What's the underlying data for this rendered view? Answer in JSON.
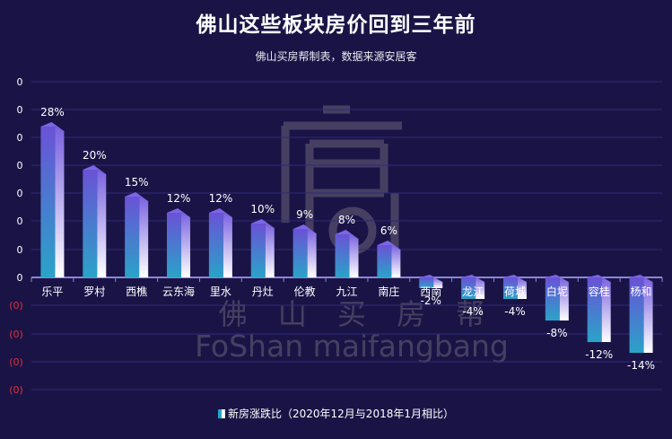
{
  "title": "佛山这些板块房价回到三年前",
  "subtitle": "佛山买房帮制表，数据来源安居客",
  "legend_label": "新房涨跌比（2020年12月与2018年1月相比）",
  "watermark": {
    "line1": "佛 山 买 房 帮",
    "line2": "FoShan maifangbang"
  },
  "colors": {
    "background": "#1a1446",
    "bar_top": "#6a52d6",
    "bar_bottom": "#2aa3c8",
    "bar_side": "#ffffff",
    "negative_tick": "#e0303a",
    "grid": "#2e2a7a"
  },
  "chart_data": {
    "type": "bar",
    "categories": [
      "乐平",
      "罗村",
      "西樵",
      "云东海",
      "里水",
      "丹灶",
      "伦教",
      "九江",
      "南庄",
      "西南",
      "龙江",
      "荷城",
      "白坭",
      "容桂",
      "杨和"
    ],
    "series": [
      {
        "name": "新房涨跌比（2020年12月与2018年1月相比）",
        "values": [
          28,
          20,
          15,
          12,
          12,
          10,
          9,
          8,
          6,
          -2,
          -4,
          -4,
          -8,
          -12,
          -14
        ]
      }
    ],
    "data_labels": [
      "28%",
      "20%",
      "15%",
      "12%",
      "12%",
      "10%",
      "9%",
      "8%",
      "6%",
      "-2%",
      "-4%",
      "-4%",
      "-8%",
      "-12%",
      "-14%"
    ],
    "y_ticks": [
      "0",
      "0",
      "0",
      "0",
      "0",
      "0",
      "0",
      "0",
      "(0)",
      "(0)",
      "(0)",
      "(0)"
    ],
    "ylim": [
      -20,
      35
    ],
    "grid": true,
    "legend_position": "bottom"
  }
}
